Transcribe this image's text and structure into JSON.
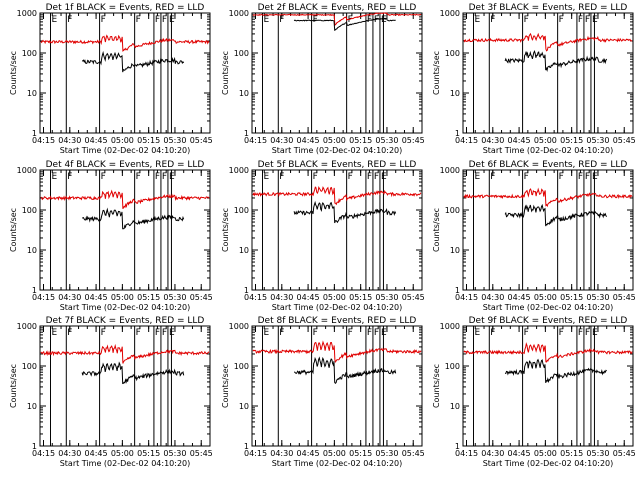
{
  "chart_data": {
    "type": "line",
    "scale": {
      "y": "log"
    },
    "ylim": [
      1,
      1000
    ],
    "xlim": [
      "04:13",
      "05:50"
    ],
    "x_ticks": [
      "04:15",
      "04:30",
      "04:45",
      "05:00",
      "05:15",
      "05:30",
      "05:45"
    ],
    "y_ticks": [
      "1",
      "10",
      "100",
      "1000"
    ],
    "ylabel": "Counts/sec",
    "xlabel": "Start Time (02-Dec-02 04:10:20)",
    "series_colors": {
      "events": "#000000",
      "lld": "#e00000"
    },
    "markers": [
      {
        "time": "04:19",
        "label": "E"
      },
      {
        "time": "04:28",
        "label": "F"
      },
      {
        "time": "04:47",
        "label": "F"
      },
      {
        "time": "05:07",
        "label": "F"
      },
      {
        "time": "05:18",
        "label": "F"
      },
      {
        "time": "05:22",
        "label": "F"
      },
      {
        "time": "05:26",
        "label": "E"
      },
      {
        "time": "05:28",
        "label": ""
      }
    ],
    "panels": [
      {
        "detector": "1f",
        "title": "Det 1f BLACK = Events, RED = LLD",
        "lld_base": 190,
        "events_base": 60,
        "lld_spikes": 1.0,
        "events_spikes": 1.0
      },
      {
        "detector": "2f",
        "title": "Det 2f BLACK = Events, RED = LLD",
        "lld_base": 900,
        "events_base": 650,
        "lld_spikes": 0.0,
        "events_spikes": 0.0
      },
      {
        "detector": "3f",
        "title": "Det 3f BLACK = Events, RED = LLD",
        "lld_base": 210,
        "events_base": 65,
        "lld_spikes": 1.0,
        "events_spikes": 1.0
      },
      {
        "detector": "4f",
        "title": "Det 4f BLACK = Events, RED = LLD",
        "lld_base": 200,
        "events_base": 60,
        "lld_spikes": 1.2,
        "events_spikes": 1.0
      },
      {
        "detector": "5f",
        "title": "Det 5f BLACK = Events, RED = LLD",
        "lld_base": 250,
        "events_base": 85,
        "lld_spikes": 1.2,
        "events_spikes": 1.2
      },
      {
        "detector": "6f",
        "title": "Det 6f BLACK = Events, RED = LLD",
        "lld_base": 220,
        "events_base": 75,
        "lld_spikes": 1.2,
        "events_spikes": 1.1
      },
      {
        "detector": "7f",
        "title": "Det 7f BLACK = Events, RED = LLD",
        "lld_base": 210,
        "events_base": 65,
        "lld_spikes": 1.2,
        "events_spikes": 1.2
      },
      {
        "detector": "8f",
        "title": "Det 8f BLACK = Events, RED = LLD",
        "lld_base": 230,
        "events_base": 70,
        "lld_spikes": 1.8,
        "events_spikes": 1.8
      },
      {
        "detector": "9f",
        "title": "Det 9f BLACK = Events, RED = LLD",
        "lld_base": 220,
        "events_base": 70,
        "lld_spikes": 1.5,
        "events_spikes": 1.5
      }
    ]
  }
}
